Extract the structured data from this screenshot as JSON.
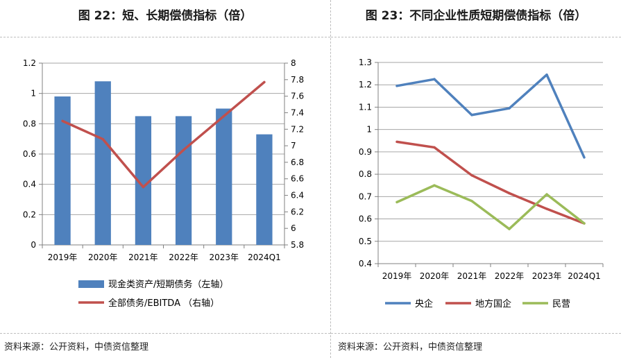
{
  "left": {
    "title": "图 22：短、长期偿债指标（倍）",
    "source": "资料来源：公开资料，中债资信整理",
    "chart_data": {
      "type": "bar",
      "categories": [
        "2019年",
        "2020年",
        "2021年",
        "2022年",
        "2023年",
        "2024Q1"
      ],
      "left_axis": {
        "min": 0,
        "max": 1.2,
        "step": 0.2,
        "ticks": [
          "0",
          "0.2",
          "0.4",
          "0.6",
          "0.8",
          "1",
          "1.2"
        ]
      },
      "right_axis": {
        "min": 5.8,
        "max": 8,
        "step": 0.2,
        "ticks": [
          "5.8",
          "6",
          "6.2",
          "6.4",
          "6.6",
          "6.8",
          "7",
          "7.2",
          "7.4",
          "7.6",
          "7.8",
          "8"
        ]
      },
      "grid": true,
      "legend_position": "bottom",
      "series": [
        {
          "name": "现金类资产/短期债务（左轴）",
          "type": "bar",
          "axis": "left",
          "color": "#4f81bd",
          "values": [
            0.98,
            1.08,
            0.85,
            0.85,
            0.9,
            0.73
          ]
        },
        {
          "name": "全部债务/EBITDA （右轴）",
          "type": "line",
          "axis": "right",
          "color": "#c0504d",
          "values": [
            7.3,
            7.08,
            6.5,
            6.95,
            null,
            7.77
          ]
        }
      ]
    }
  },
  "right": {
    "title": "图 23：不同企业性质短期偿债指标（倍）",
    "source": "资料来源：公开资料，中债资信整理",
    "chart_data": {
      "type": "line",
      "categories": [
        "2019年",
        "2020年",
        "2021年",
        "2022年",
        "2023年",
        "2024Q1"
      ],
      "y_axis": {
        "min": 0.4,
        "max": 1.3,
        "step": 0.1,
        "ticks": [
          "0.4",
          "0.5",
          "0.6",
          "0.7",
          "0.8",
          "0.9",
          "1",
          "1.1",
          "1.2",
          "1.3"
        ]
      },
      "grid": true,
      "legend_position": "bottom",
      "series": [
        {
          "name": "央企",
          "color": "#4f81bd",
          "values": [
            1.195,
            1.225,
            1.065,
            1.095,
            1.245,
            0.875
          ]
        },
        {
          "name": "地方国企",
          "color": "#c0504d",
          "values": [
            0.945,
            0.92,
            0.795,
            0.715,
            0.645,
            0.58
          ]
        },
        {
          "name": "民营",
          "color": "#9bbb59",
          "values": [
            0.675,
            0.75,
            0.68,
            0.555,
            0.71,
            0.58
          ]
        }
      ]
    }
  }
}
